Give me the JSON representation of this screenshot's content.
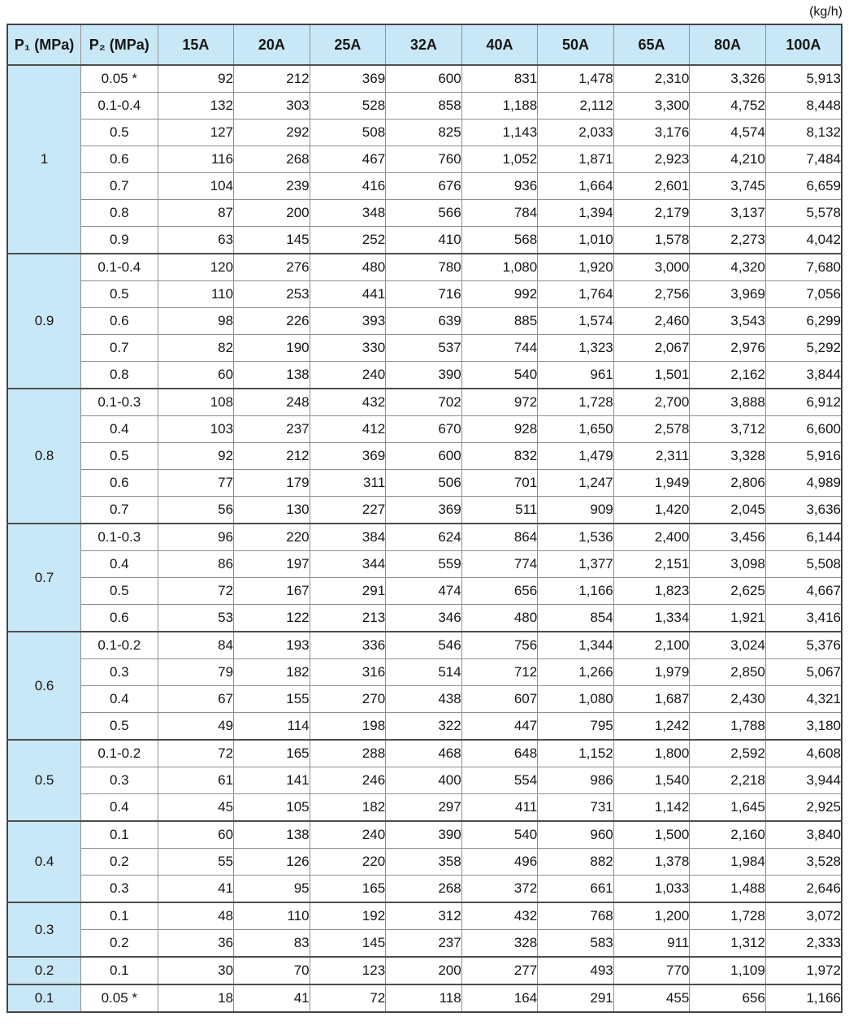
{
  "unit_label": "(kg/h)",
  "colors": {
    "header_bg": "#c9e8f7",
    "grid_line": "#8e8e8e",
    "group_separator": "#4d4d4d",
    "outer_border": "#434343",
    "text": "#161616"
  },
  "chart_data": {
    "type": "table",
    "title": "",
    "unit": "(kg/h)",
    "columns": [
      "P₁ (MPa)",
      "P₂ (MPa)",
      "15A",
      "20A",
      "25A",
      "32A",
      "40A",
      "50A",
      "65A",
      "80A",
      "100A"
    ],
    "groups": [
      {
        "p1": "1",
        "rows": [
          {
            "p2": "0.05 *",
            "values": [
              "92",
              "212",
              "369",
              "600",
              "831",
              "1,478",
              "2,310",
              "3,326",
              "5,913"
            ]
          },
          {
            "p2": "0.1-0.4",
            "values": [
              "132",
              "303",
              "528",
              "858",
              "1,188",
              "2,112",
              "3,300",
              "4,752",
              "8,448"
            ]
          },
          {
            "p2": "0.5",
            "values": [
              "127",
              "292",
              "508",
              "825",
              "1,143",
              "2,033",
              "3,176",
              "4,574",
              "8,132"
            ]
          },
          {
            "p2": "0.6",
            "values": [
              "116",
              "268",
              "467",
              "760",
              "1,052",
              "1,871",
              "2,923",
              "4,210",
              "7,484"
            ]
          },
          {
            "p2": "0.7",
            "values": [
              "104",
              "239",
              "416",
              "676",
              "936",
              "1,664",
              "2,601",
              "3,745",
              "6,659"
            ]
          },
          {
            "p2": "0.8",
            "values": [
              "87",
              "200",
              "348",
              "566",
              "784",
              "1,394",
              "2,179",
              "3,137",
              "5,578"
            ]
          },
          {
            "p2": "0.9",
            "values": [
              "63",
              "145",
              "252",
              "410",
              "568",
              "1,010",
              "1,578",
              "2,273",
              "4,042"
            ]
          }
        ]
      },
      {
        "p1": "0.9",
        "rows": [
          {
            "p2": "0.1-0.4",
            "values": [
              "120",
              "276",
              "480",
              "780",
              "1,080",
              "1,920",
              "3,000",
              "4,320",
              "7,680"
            ]
          },
          {
            "p2": "0.5",
            "values": [
              "110",
              "253",
              "441",
              "716",
              "992",
              "1,764",
              "2,756",
              "3,969",
              "7,056"
            ]
          },
          {
            "p2": "0.6",
            "values": [
              "98",
              "226",
              "393",
              "639",
              "885",
              "1,574",
              "2,460",
              "3,543",
              "6,299"
            ]
          },
          {
            "p2": "0.7",
            "values": [
              "82",
              "190",
              "330",
              "537",
              "744",
              "1,323",
              "2,067",
              "2,976",
              "5,292"
            ]
          },
          {
            "p2": "0.8",
            "values": [
              "60",
              "138",
              "240",
              "390",
              "540",
              "961",
              "1,501",
              "2,162",
              "3,844"
            ]
          }
        ]
      },
      {
        "p1": "0.8",
        "rows": [
          {
            "p2": "0.1-0.3",
            "values": [
              "108",
              "248",
              "432",
              "702",
              "972",
              "1,728",
              "2,700",
              "3,888",
              "6,912"
            ]
          },
          {
            "p2": "0.4",
            "values": [
              "103",
              "237",
              "412",
              "670",
              "928",
              "1,650",
              "2,578",
              "3,712",
              "6,600"
            ]
          },
          {
            "p2": "0.5",
            "values": [
              "92",
              "212",
              "369",
              "600",
              "832",
              "1,479",
              "2,311",
              "3,328",
              "5,916"
            ]
          },
          {
            "p2": "0.6",
            "values": [
              "77",
              "179",
              "311",
              "506",
              "701",
              "1,247",
              "1,949",
              "2,806",
              "4,989"
            ]
          },
          {
            "p2": "0.7",
            "values": [
              "56",
              "130",
              "227",
              "369",
              "511",
              "909",
              "1,420",
              "2,045",
              "3,636"
            ]
          }
        ]
      },
      {
        "p1": "0.7",
        "rows": [
          {
            "p2": "0.1-0.3",
            "values": [
              "96",
              "220",
              "384",
              "624",
              "864",
              "1,536",
              "2,400",
              "3,456",
              "6,144"
            ]
          },
          {
            "p2": "0.4",
            "values": [
              "86",
              "197",
              "344",
              "559",
              "774",
              "1,377",
              "2,151",
              "3,098",
              "5,508"
            ]
          },
          {
            "p2": "0.5",
            "values": [
              "72",
              "167",
              "291",
              "474",
              "656",
              "1,166",
              "1,823",
              "2,625",
              "4,667"
            ]
          },
          {
            "p2": "0.6",
            "values": [
              "53",
              "122",
              "213",
              "346",
              "480",
              "854",
              "1,334",
              "1,921",
              "3,416"
            ]
          }
        ]
      },
      {
        "p1": "0.6",
        "rows": [
          {
            "p2": "0.1-0.2",
            "values": [
              "84",
              "193",
              "336",
              "546",
              "756",
              "1,344",
              "2,100",
              "3,024",
              "5,376"
            ]
          },
          {
            "p2": "0.3",
            "values": [
              "79",
              "182",
              "316",
              "514",
              "712",
              "1,266",
              "1,979",
              "2,850",
              "5,067"
            ]
          },
          {
            "p2": "0.4",
            "values": [
              "67",
              "155",
              "270",
              "438",
              "607",
              "1,080",
              "1,687",
              "2,430",
              "4,321"
            ]
          },
          {
            "p2": "0.5",
            "values": [
              "49",
              "114",
              "198",
              "322",
              "447",
              "795",
              "1,242",
              "1,788",
              "3,180"
            ]
          }
        ]
      },
      {
        "p1": "0.5",
        "rows": [
          {
            "p2": "0.1-0.2",
            "values": [
              "72",
              "165",
              "288",
              "468",
              "648",
              "1,152",
              "1,800",
              "2,592",
              "4,608"
            ]
          },
          {
            "p2": "0.3",
            "values": [
              "61",
              "141",
              "246",
              "400",
              "554",
              "986",
              "1,540",
              "2,218",
              "3,944"
            ]
          },
          {
            "p2": "0.4",
            "values": [
              "45",
              "105",
              "182",
              "297",
              "411",
              "731",
              "1,142",
              "1,645",
              "2,925"
            ]
          }
        ]
      },
      {
        "p1": "0.4",
        "rows": [
          {
            "p2": "0.1",
            "values": [
              "60",
              "138",
              "240",
              "390",
              "540",
              "960",
              "1,500",
              "2,160",
              "3,840"
            ]
          },
          {
            "p2": "0.2",
            "values": [
              "55",
              "126",
              "220",
              "358",
              "496",
              "882",
              "1,378",
              "1,984",
              "3,528"
            ]
          },
          {
            "p2": "0.3",
            "values": [
              "41",
              "95",
              "165",
              "268",
              "372",
              "661",
              "1,033",
              "1,488",
              "2,646"
            ]
          }
        ]
      },
      {
        "p1": "0.3",
        "rows": [
          {
            "p2": "0.1",
            "values": [
              "48",
              "110",
              "192",
              "312",
              "432",
              "768",
              "1,200",
              "1,728",
              "3,072"
            ]
          },
          {
            "p2": "0.2",
            "values": [
              "36",
              "83",
              "145",
              "237",
              "328",
              "583",
              "911",
              "1,312",
              "2,333"
            ]
          }
        ]
      },
      {
        "p1": "0.2",
        "rows": [
          {
            "p2": "0.1",
            "values": [
              "30",
              "70",
              "123",
              "200",
              "277",
              "493",
              "770",
              "1,109",
              "1,972"
            ]
          }
        ]
      },
      {
        "p1": "0.1",
        "rows": [
          {
            "p2": "0.05 *",
            "values": [
              "18",
              "41",
              "72",
              "118",
              "164",
              "291",
              "455",
              "656",
              "1,166"
            ]
          }
        ]
      }
    ]
  }
}
